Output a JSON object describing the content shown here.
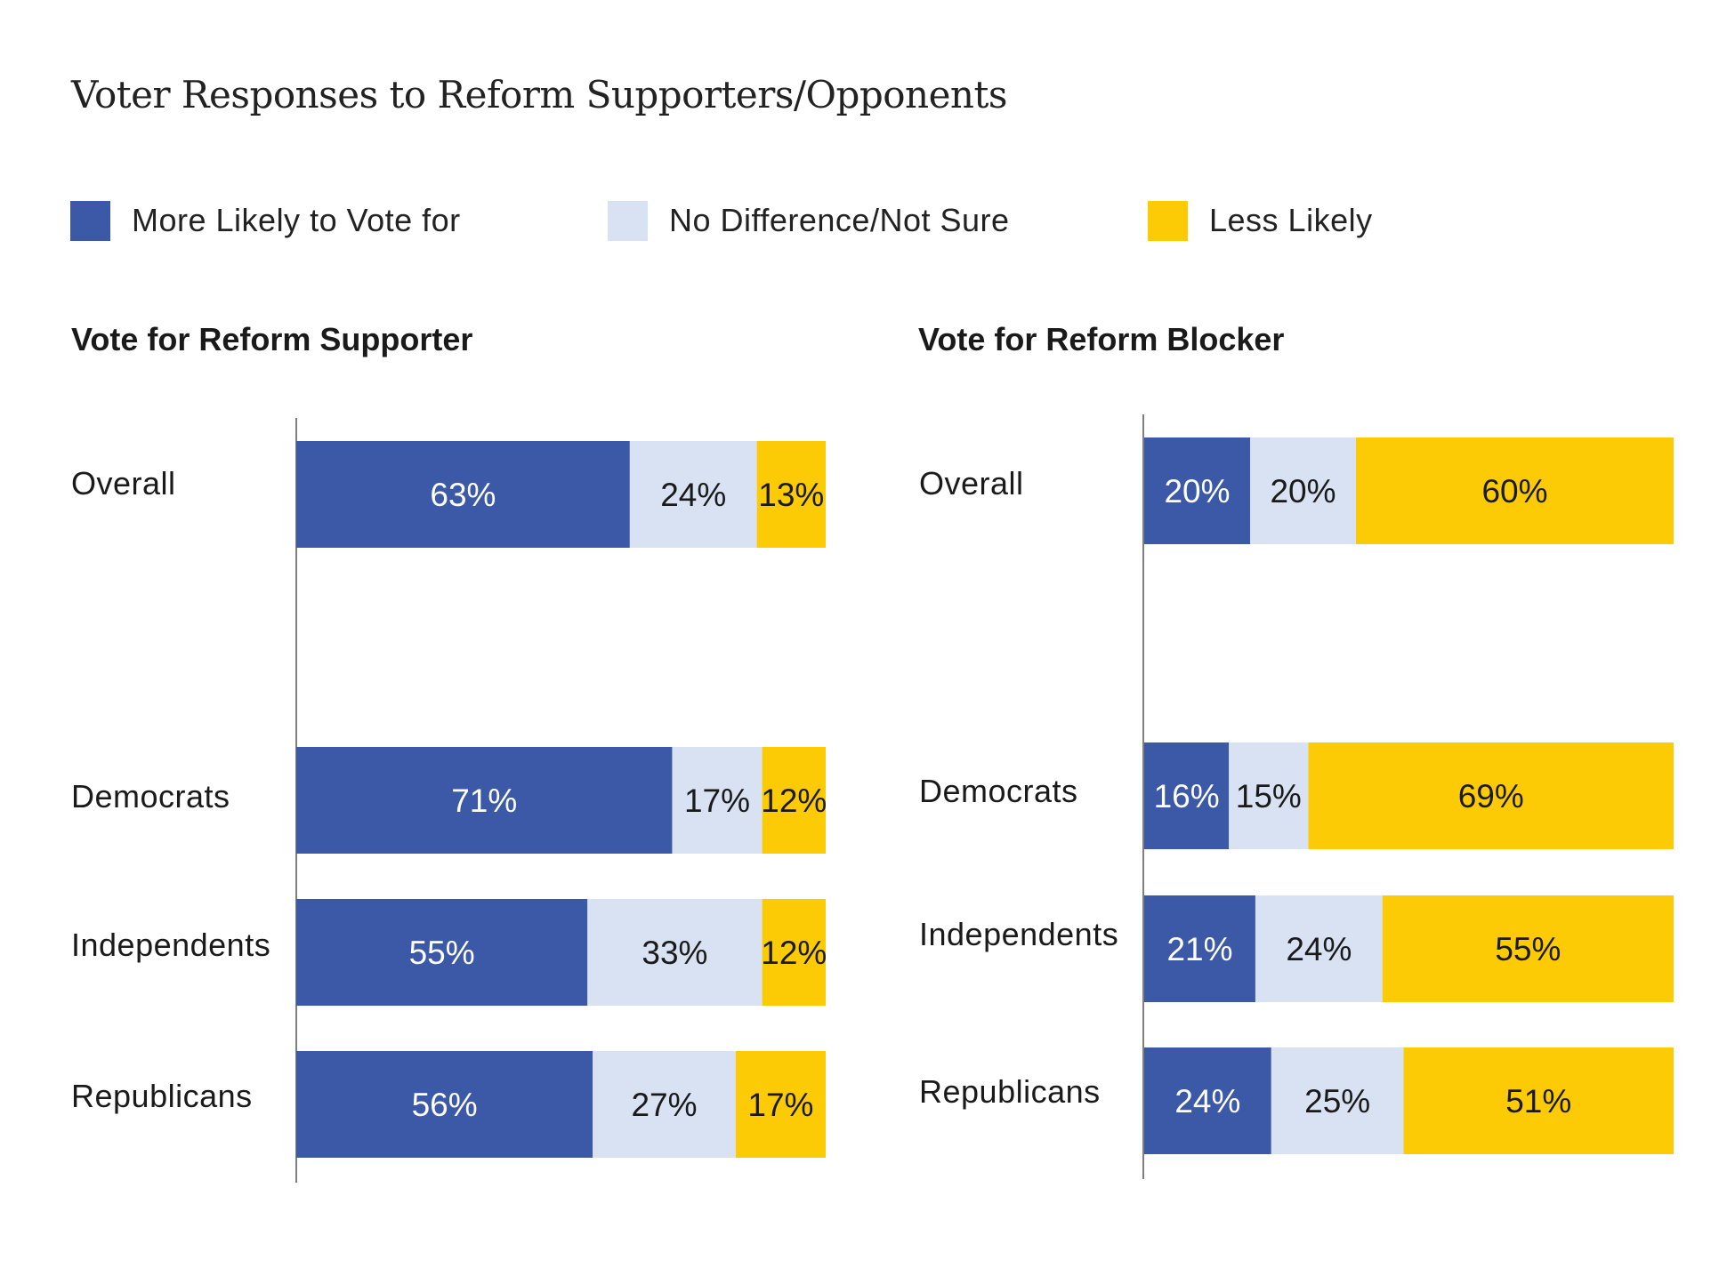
{
  "title": "Voter Responses to Reform Supporters/Opponents",
  "legend": [
    {
      "label": "More Likely to Vote for",
      "color": "#3b59a7"
    },
    {
      "label": "No Difference/Not Sure",
      "color": "#d9e2f2"
    },
    {
      "label": "Less Likely",
      "color": "#fccb05"
    }
  ],
  "chart_data": [
    {
      "type": "bar",
      "stacked": true,
      "orientation": "horizontal",
      "title": "Vote for Reform Supporter",
      "categories": [
        "Overall",
        "Democrats",
        "Independents",
        "Republicans"
      ],
      "series": [
        {
          "name": "More Likely to Vote for",
          "values": [
            63,
            71,
            55,
            56
          ],
          "labels": [
            "63%",
            "71%",
            "55%",
            "56%"
          ],
          "color": "#3b59a7",
          "text_color": "#ffffff"
        },
        {
          "name": "No Difference/Not Sure",
          "values": [
            24,
            17,
            33,
            27
          ],
          "labels": [
            "24%",
            "17%",
            "33%",
            "27%"
          ],
          "color": "#d9e2f2",
          "text_color": "#1a1a1a"
        },
        {
          "name": "Less Likely",
          "values": [
            13,
            12,
            12,
            17
          ],
          "labels": [
            "13%",
            "12%",
            "12%",
            "17%"
          ],
          "color": "#fccb05",
          "text_color": "#1a1a1a"
        }
      ],
      "xlim": [
        0,
        100
      ]
    },
    {
      "type": "bar",
      "stacked": true,
      "orientation": "horizontal",
      "title": "Vote for Reform Blocker",
      "categories": [
        "Overall",
        "Democrats",
        "Independents",
        "Republicans"
      ],
      "series": [
        {
          "name": "More Likely to Vote for",
          "values": [
            20,
            16,
            21,
            24
          ],
          "labels": [
            "20%",
            "16%",
            "21%",
            "24%"
          ],
          "color": "#3b59a7",
          "text_color": "#ffffff"
        },
        {
          "name": "No Difference/Not Sure",
          "values": [
            20,
            15,
            24,
            25
          ],
          "labels": [
            "20%",
            "15%",
            "24%",
            "25%"
          ],
          "color": "#d9e2f2",
          "text_color": "#1a1a1a"
        },
        {
          "name": "Less Likely",
          "values": [
            60,
            69,
            55,
            51
          ],
          "labels": [
            "60%",
            "69%",
            "55%",
            "51%"
          ],
          "color": "#fccb05",
          "text_color": "#1a1a1a"
        }
      ],
      "xlim": [
        0,
        100
      ]
    }
  ]
}
